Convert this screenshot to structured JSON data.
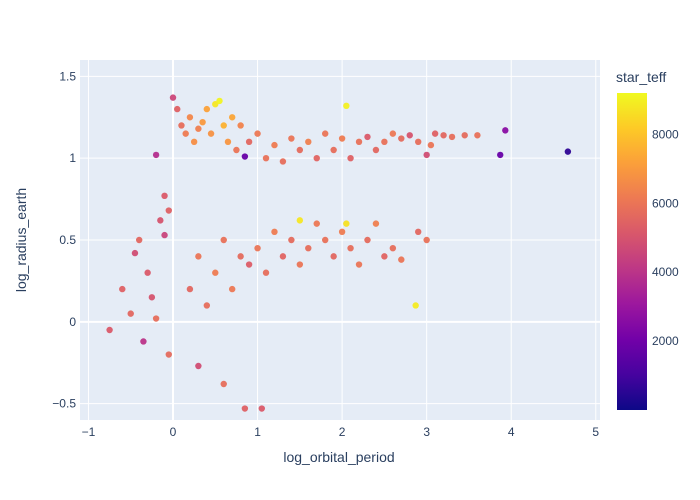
{
  "chart_data": {
    "type": "scatter",
    "xlabel": "log_orbital_period",
    "ylabel": "log_radius_earth",
    "xlim": [
      -1.1,
      5.05
    ],
    "ylim": [
      -0.6,
      1.6
    ],
    "xticks": [
      -1,
      0,
      1,
      2,
      3,
      4,
      5
    ],
    "yticks": [
      -0.5,
      0,
      0.5,
      1,
      1.5
    ],
    "xtick_labels": [
      "−1",
      "0",
      "1",
      "2",
      "3",
      "4",
      "5"
    ],
    "ytick_labels": [
      "−0.5",
      "0",
      "0.5",
      "1",
      "1.5"
    ],
    "colorbar": {
      "title": "star_teff",
      "range": [
        0,
        9200
      ],
      "ticks": [
        2000,
        4000,
        6000,
        8000
      ],
      "tick_labels": [
        "2000",
        "4000",
        "6000",
        "8000"
      ],
      "colorscale": [
        "#0d0887",
        "#46039f",
        "#7201a8",
        "#9c179e",
        "#bd3786",
        "#d8576b",
        "#ed7953",
        "#fb9f3a",
        "#fdca26",
        "#f0f921"
      ]
    },
    "background": "#e5ecf6",
    "grid": true,
    "points": [
      [
        -0.75,
        -0.05,
        5200
      ],
      [
        -0.6,
        0.2,
        5400
      ],
      [
        -0.5,
        0.05,
        5600
      ],
      [
        -0.45,
        0.42,
        4800
      ],
      [
        -0.4,
        0.5,
        5600
      ],
      [
        -0.35,
        -0.12,
        4000
      ],
      [
        -0.3,
        0.3,
        5200
      ],
      [
        -0.25,
        0.15,
        5000
      ],
      [
        -0.2,
        1.02,
        3800
      ],
      [
        -0.2,
        0.02,
        5800
      ],
      [
        -0.15,
        0.62,
        5000
      ],
      [
        -0.1,
        0.53,
        4500
      ],
      [
        -0.1,
        0.77,
        5200
      ],
      [
        -0.05,
        0.68,
        5400
      ],
      [
        -0.05,
        -0.2,
        5700
      ],
      [
        0.0,
        1.37,
        4600
      ],
      [
        0.05,
        1.3,
        5400
      ],
      [
        0.1,
        1.2,
        5800
      ],
      [
        0.15,
        1.15,
        6200
      ],
      [
        0.2,
        1.25,
        6500
      ],
      [
        0.25,
        1.1,
        6700
      ],
      [
        0.3,
        1.18,
        6300
      ],
      [
        0.35,
        1.22,
        7000
      ],
      [
        0.4,
        1.3,
        7200
      ],
      [
        0.45,
        1.15,
        6800
      ],
      [
        0.5,
        1.33,
        8800
      ],
      [
        0.55,
        1.35,
        9100
      ],
      [
        0.6,
        1.2,
        7600
      ],
      [
        0.65,
        1.1,
        6900
      ],
      [
        0.7,
        1.25,
        7300
      ],
      [
        0.75,
        1.05,
        6000
      ],
      [
        0.8,
        1.2,
        6400
      ],
      [
        0.85,
        1.01,
        1800
      ],
      [
        0.9,
        1.1,
        5600
      ],
      [
        1.0,
        1.15,
        6100
      ],
      [
        1.1,
        1.0,
        5900
      ],
      [
        1.2,
        1.08,
        6200
      ],
      [
        1.3,
        0.98,
        5800
      ],
      [
        1.4,
        1.12,
        6000
      ],
      [
        1.5,
        1.05,
        5700
      ],
      [
        1.6,
        1.1,
        6300
      ],
      [
        1.7,
        1.0,
        5500
      ],
      [
        1.8,
        1.15,
        6000
      ],
      [
        1.9,
        1.05,
        5800
      ],
      [
        2.0,
        1.12,
        6200
      ],
      [
        2.05,
        1.32,
        9000
      ],
      [
        2.1,
        1.0,
        5400
      ],
      [
        2.2,
        1.1,
        5900
      ],
      [
        2.3,
        1.13,
        5200
      ],
      [
        2.4,
        1.05,
        5600
      ],
      [
        2.5,
        1.1,
        5900
      ],
      [
        2.6,
        1.15,
        6100
      ],
      [
        2.7,
        1.12,
        5700
      ],
      [
        2.8,
        1.14,
        5000
      ],
      [
        2.9,
        1.1,
        5800
      ],
      [
        3.0,
        1.02,
        4800
      ],
      [
        3.05,
        1.08,
        6000
      ],
      [
        3.1,
        1.15,
        5400
      ],
      [
        3.2,
        1.14,
        5600
      ],
      [
        3.3,
        1.13,
        5800
      ],
      [
        3.45,
        1.14,
        5700
      ],
      [
        3.6,
        1.14,
        5900
      ],
      [
        3.87,
        1.02,
        1800
      ],
      [
        3.93,
        1.17,
        2600
      ],
      [
        4.67,
        1.04,
        600
      ],
      [
        0.2,
        0.2,
        5600
      ],
      [
        0.3,
        0.4,
        6000
      ],
      [
        0.4,
        0.1,
        5800
      ],
      [
        0.5,
        0.3,
        6200
      ],
      [
        0.6,
        0.5,
        5900
      ],
      [
        0.7,
        0.2,
        6100
      ],
      [
        0.8,
        0.4,
        5700
      ],
      [
        0.9,
        0.35,
        5300
      ],
      [
        1.0,
        0.45,
        6000
      ],
      [
        1.1,
        0.3,
        5800
      ],
      [
        1.2,
        0.55,
        6200
      ],
      [
        1.3,
        0.4,
        5500
      ],
      [
        1.4,
        0.5,
        5700
      ],
      [
        1.5,
        0.35,
        6000
      ],
      [
        1.6,
        0.45,
        5800
      ],
      [
        1.7,
        0.6,
        6100
      ],
      [
        1.8,
        0.5,
        5900
      ],
      [
        1.9,
        0.4,
        5600
      ],
      [
        2.0,
        0.55,
        6200
      ],
      [
        2.1,
        0.45,
        5800
      ],
      [
        2.2,
        0.35,
        6000
      ],
      [
        2.3,
        0.5,
        5700
      ],
      [
        2.4,
        0.6,
        6300
      ],
      [
        2.5,
        0.4,
        5500
      ],
      [
        2.6,
        0.45,
        5800
      ],
      [
        2.7,
        0.38,
        6000
      ],
      [
        2.87,
        0.1,
        8900
      ],
      [
        2.9,
        0.55,
        5600
      ],
      [
        3.0,
        0.5,
        5900
      ],
      [
        1.05,
        -0.53,
        5200
      ],
      [
        0.85,
        -0.53,
        5400
      ],
      [
        0.6,
        -0.38,
        5800
      ],
      [
        0.3,
        -0.27,
        4800
      ],
      [
        1.5,
        0.62,
        8800
      ],
      [
        2.05,
        0.6,
        8700
      ]
    ]
  }
}
